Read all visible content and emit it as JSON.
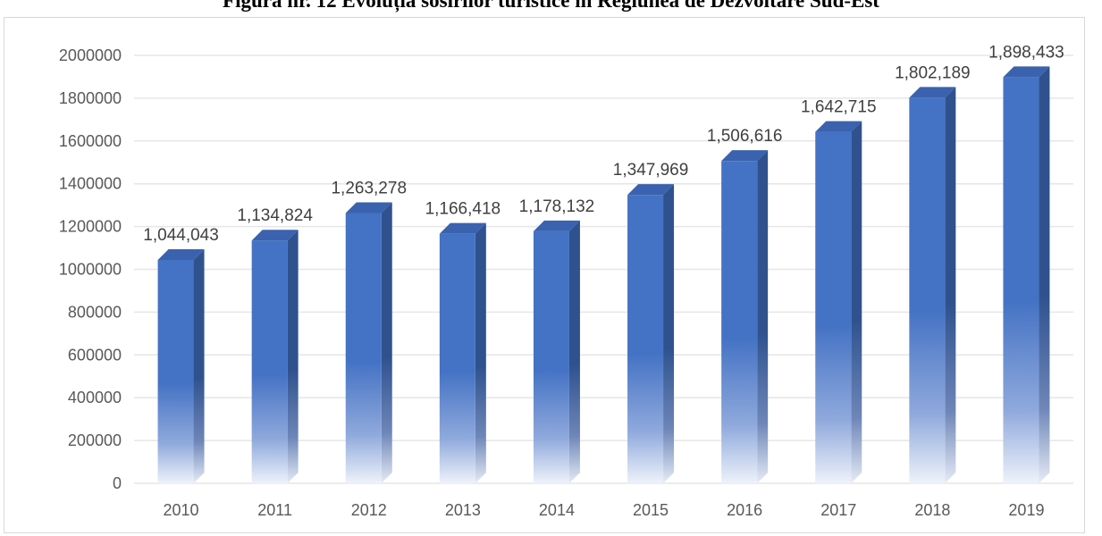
{
  "title": "Figura nr. 12 Evoluția sosirilor turistice în Regiunea de Dezvoltare Sud-Est",
  "chart_data": {
    "type": "bar",
    "title": "Figura nr. 12 Evoluția sosirilor turistice în Regiunea de Dezvoltare Sud-Est",
    "xlabel": "",
    "ylabel": "",
    "categories": [
      "2010",
      "2011",
      "2012",
      "2013",
      "2014",
      "2015",
      "2016",
      "2017",
      "2018",
      "2019"
    ],
    "values": [
      1044043,
      1134824,
      1263278,
      1166418,
      1178132,
      1347969,
      1506616,
      1642715,
      1802189,
      1898433
    ],
    "data_labels": [
      "1,044,043",
      "1,134,824",
      "1,263,278",
      "1,166,418",
      "1,178,132",
      "1,347,969",
      "1,506,616",
      "1,642,715",
      "1,802,189",
      "1,898,433"
    ],
    "ylim": [
      0,
      2000000
    ],
    "yticks": [
      0,
      200000,
      400000,
      600000,
      800000,
      1000000,
      1200000,
      1400000,
      1600000,
      1800000,
      2000000
    ],
    "ytick_labels": [
      "0",
      "200000",
      "400000",
      "600000",
      "800000",
      "1000000",
      "1200000",
      "1400000",
      "1600000",
      "1800000",
      "2000000"
    ],
    "grid": true,
    "legend": "none",
    "colors": {
      "bar_front": "#4472C4",
      "bar_side": "#2F528F",
      "bar_top": "#3A62AE",
      "grid": "#e6e6e6"
    }
  }
}
